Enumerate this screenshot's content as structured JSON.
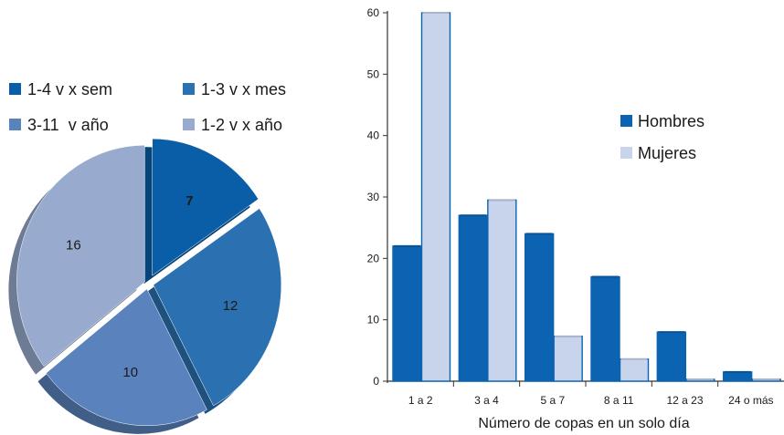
{
  "chart_data": [
    {
      "type": "pie",
      "slices": [
        {
          "label": "1-4 v x sem",
          "value": 7,
          "color": "#0a5ea8"
        },
        {
          "label": "1-3 v x mes",
          "value": 12,
          "color": "#2b70b0"
        },
        {
          "label": "3-11  v año",
          "value": 10,
          "color": "#5a83bd"
        },
        {
          "label": "1-2 v x año",
          "value": 16,
          "color": "#98abce"
        }
      ],
      "value_labels": [
        "7",
        "12",
        "10",
        "16"
      ],
      "legend_position": "top"
    },
    {
      "type": "bar",
      "categories": [
        "1 a 2",
        "3 a 4",
        "5 a 7",
        "8 a 11",
        "12 a 23",
        "24 o más"
      ],
      "series": [
        {
          "name": "Hombres",
          "values": [
            22,
            27,
            24,
            17,
            8,
            1.5
          ],
          "color": "#0b63b2"
        },
        {
          "name": "Mujeres",
          "values": [
            60,
            29.5,
            7.3,
            3.6,
            0.3,
            0.3
          ],
          "color": "#c8d4ec"
        }
      ],
      "xlabel": "Número de copas en un solo día",
      "ylabel": "",
      "ylim": [
        0,
        60
      ],
      "yticks": [
        0,
        10,
        20,
        30,
        40,
        50,
        60
      ],
      "grid": false,
      "legend_position": "right"
    }
  ]
}
